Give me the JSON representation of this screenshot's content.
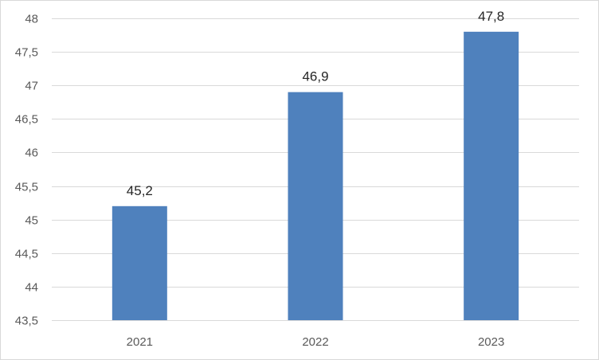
{
  "chart_data": {
    "type": "bar",
    "categories": [
      "2021",
      "2022",
      "2023"
    ],
    "values": [
      45.2,
      46.9,
      47.8
    ],
    "data_labels": [
      "45,2",
      "46,9",
      "47,8"
    ],
    "title": "",
    "xlabel": "",
    "ylabel": "",
    "ylim": [
      43.5,
      48
    ],
    "yticks": [
      43.5,
      44,
      44.5,
      45,
      45.5,
      46,
      46.5,
      47,
      47.5,
      48
    ],
    "ytick_labels": [
      "43,5",
      "44",
      "44,5",
      "45",
      "45,5",
      "46",
      "46,5",
      "47",
      "47,5",
      "48"
    ],
    "grid": true,
    "legend": "none",
    "bar_color": "#4f81bd"
  }
}
